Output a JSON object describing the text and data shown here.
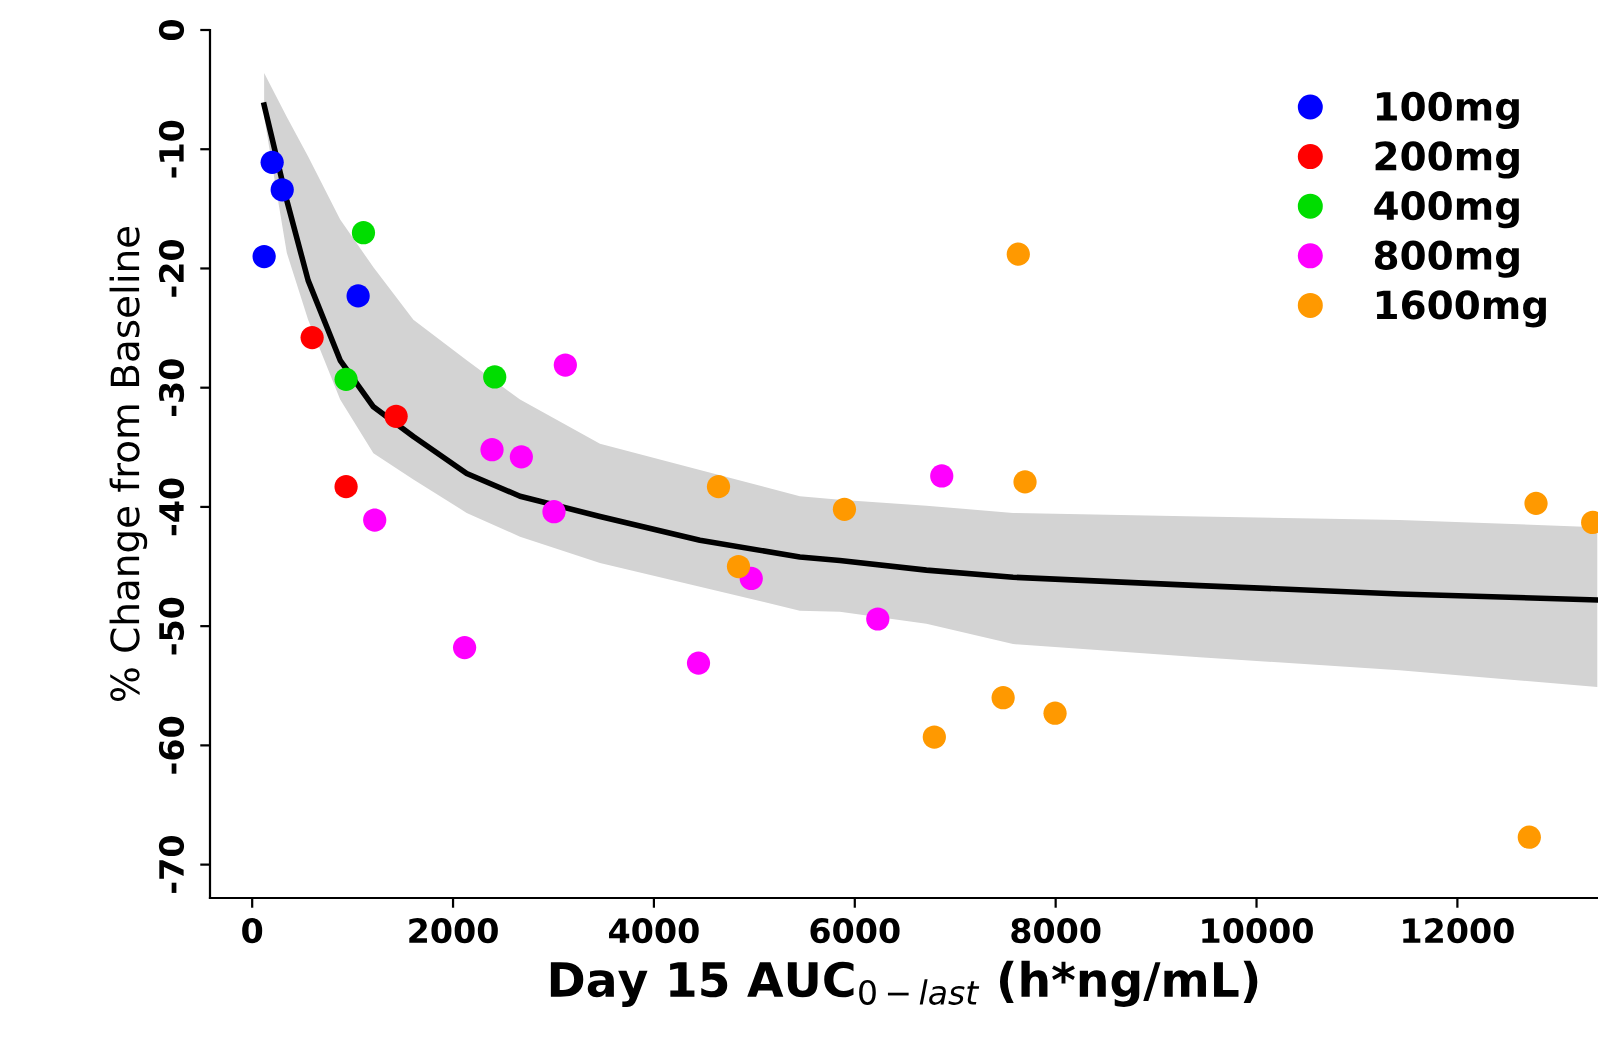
{
  "chart_data": {
    "type": "scatter",
    "xlabel": "Day 15 AUC$_{0−last}$ (h*ng/mL)",
    "ylabel": "% Change from Baseline",
    "xlim": [
      -420,
      13400
    ],
    "ylim": [
      -72.8,
      0
    ],
    "xticks": [
      0,
      2000,
      4000,
      6000,
      8000,
      10000,
      12000
    ],
    "yticks": [
      0,
      -10,
      -20,
      -30,
      -40,
      -50,
      -60,
      -70
    ],
    "legend": "top right",
    "grid": false,
    "marker": "circle",
    "series": [
      {
        "type": "line",
        "color": "#000000",
        "marker": "none",
        "x": [
          119,
          345,
          557,
          876,
          1207,
          1605,
          2136,
          2667,
          3463,
          4458,
          5453,
          5851,
          6713,
          7576,
          9433,
          11423,
          13393
        ],
        "values": [
          -6.3,
          -14.3,
          -21,
          -27.7,
          -31.6,
          -34.1,
          -37.2,
          -39.1,
          -40.8,
          -42.8,
          -44.2,
          -44.5,
          -45.3,
          -45.9,
          -46.6,
          -47.3,
          -47.8
        ],
        "lower": [
          -7.3,
          -18.7,
          -24.3,
          -31.0,
          -35.5,
          -37.7,
          -40.5,
          -42.5,
          -44.7,
          -46.7,
          -48.7,
          -48.8,
          -49.8,
          -51.5,
          -52.6,
          -53.7,
          -55.1
        ],
        "upper": [
          -3.6,
          -7.3,
          -10.6,
          -15.9,
          -19.9,
          -24.3,
          -27.7,
          -31.0,
          -34.7,
          -36.9,
          -39.1,
          -39.4,
          -39.9,
          -40.5,
          -40.8,
          -41.1,
          -41.7
        ]
      },
      {
        "name": "100mg",
        "color": "#0000ff",
        "x": [
          199,
          299,
          119,
          1055
        ],
        "values": [
          -11.1,
          -13.4,
          -19.0,
          -22.3
        ]
      },
      {
        "name": "200mg",
        "color": "#ff0000",
        "x": [
          597,
          1433,
          935
        ],
        "values": [
          -25.8,
          -32.4,
          -38.3
        ]
      },
      {
        "name": "400mg",
        "color": "#00dd00",
        "x": [
          1108,
          935,
          2415
        ],
        "values": [
          -17.0,
          -29.3,
          -29.1
        ]
      },
      {
        "name": "800mg",
        "color": "#ff00ff",
        "x": [
          3118,
          2388,
          2680,
          3005,
          1220,
          2115,
          4444,
          4969,
          6866,
          6229
        ],
        "values": [
          -28.1,
          -35.2,
          -35.8,
          -40.4,
          -41.1,
          -51.8,
          -53.1,
          -46.0,
          -37.4,
          -49.4
        ]
      },
      {
        "name": "1600mg",
        "color": "#ff9900",
        "x": [
          4643,
          4842,
          5897,
          7628,
          7695,
          7477,
          7994,
          6792,
          12783,
          12716,
          13347
        ],
        "values": [
          -38.3,
          -45.0,
          -40.2,
          -18.8,
          -37.9,
          -56.0,
          -57.3,
          -59.3,
          -39.7,
          -67.7,
          -41.3
        ]
      }
    ]
  }
}
